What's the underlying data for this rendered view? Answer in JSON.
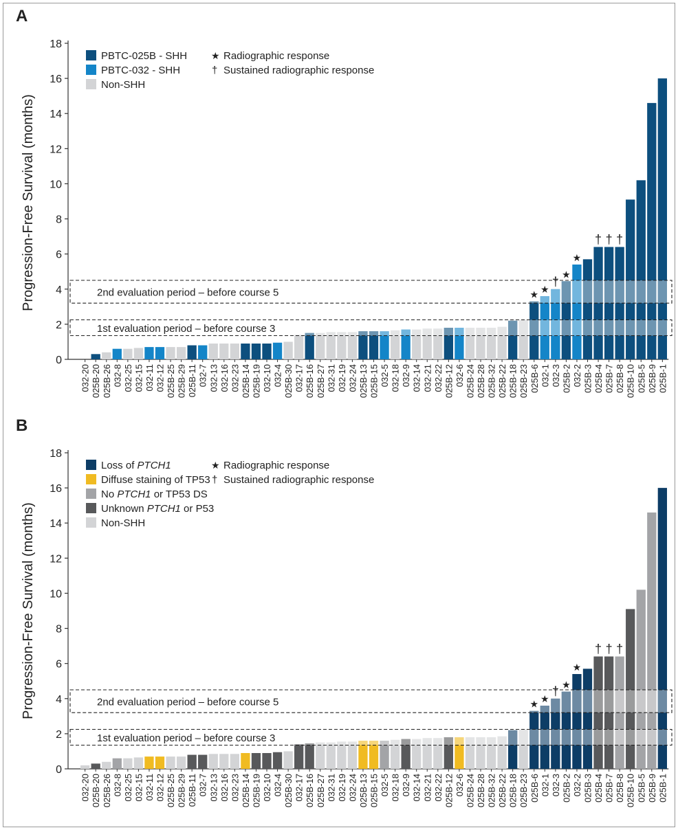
{
  "shared_categories": [
    "032-20",
    "025B-20",
    "025B-26",
    "032-8",
    "032-25",
    "032-15",
    "032-11",
    "032-12",
    "025B-25",
    "025B-29",
    "025B-11",
    "032-7",
    "032-13",
    "032-16",
    "032-23",
    "025B-14",
    "025B-19",
    "032-10",
    "032-4",
    "025B-30",
    "032-17",
    "025B-16",
    "025B-27",
    "032-31",
    "032-19",
    "032-24",
    "025B-13",
    "025B-15",
    "032-5",
    "032-18",
    "032-9",
    "032-14",
    "032-21",
    "032-22",
    "025B-12",
    "032-6",
    "025B-24",
    "025B-28",
    "025B-32",
    "025B-22",
    "025B-18",
    "025B-23",
    "025B-6",
    "032-1",
    "032-3",
    "025B-2",
    "032-2",
    "025B-3",
    "025B-4",
    "025B-7",
    "025B-8",
    "025B-10",
    "025B-5",
    "025B-9",
    "025B-1"
  ],
  "colors": {
    "pbtc025b": "#0d4f7e",
    "pbtc032": "#1485c8",
    "nonshh": "#d3d4d6",
    "loss_ptch1": "#0d3d66",
    "tp53": "#f0bb22",
    "no_ptch1": "#a3a4a7",
    "unknown": "#58595b"
  },
  "chart_data": [
    {
      "panel": "A",
      "type": "bar",
      "ylabel": "Progression-Free Survival (months)",
      "xlabel": "",
      "ylim": [
        0,
        18
      ],
      "yticks": [
        0,
        2,
        4,
        6,
        8,
        10,
        12,
        14,
        16,
        18
      ],
      "values": [
        0,
        0.3,
        0.4,
        0.6,
        0.6,
        0.65,
        0.7,
        0.7,
        0.7,
        0.7,
        0.8,
        0.8,
        0.9,
        0.9,
        0.9,
        0.9,
        0.9,
        0.9,
        0.95,
        1.0,
        1.4,
        1.5,
        1.5,
        1.55,
        1.55,
        1.55,
        1.6,
        1.6,
        1.6,
        1.65,
        1.7,
        1.7,
        1.75,
        1.75,
        1.8,
        1.8,
        1.8,
        1.8,
        1.8,
        1.85,
        2.2,
        2.25,
        3.3,
        3.6,
        4.0,
        4.45,
        5.4,
        5.7,
        6.4,
        6.4,
        6.4,
        9.1,
        10.2,
        14.6,
        16.0
      ],
      "groups": [
        "032",
        "025B",
        "nonshh",
        "032",
        "nonshh",
        "nonshh",
        "032",
        "032",
        "nonshh",
        "nonshh",
        "025B",
        "032",
        "nonshh",
        "nonshh",
        "nonshh",
        "025B",
        "025B",
        "025B",
        "032",
        "nonshh",
        "nonshh",
        "025B",
        "nonshh",
        "nonshh",
        "nonshh",
        "nonshh",
        "025B",
        "025B",
        "032",
        "nonshh",
        "032",
        "nonshh",
        "nonshh",
        "nonshh",
        "025B",
        "032",
        "nonshh",
        "nonshh",
        "nonshh",
        "nonshh",
        "025B",
        "nonshh",
        "025B",
        "032",
        "032",
        "025B",
        "032",
        "025B",
        "025B",
        "025B",
        "025B",
        "025B",
        "025B",
        "025B",
        "025B"
      ],
      "legend": [
        {
          "label": "PBTC-025B - SHH",
          "group": "025B"
        },
        {
          "label": "PBTC-032 - SHH",
          "group": "032"
        },
        {
          "label": "Non-SHH",
          "group": "nonshh"
        }
      ]
    },
    {
      "panel": "B",
      "type": "bar",
      "ylabel": "Progression-Free Survival (months)",
      "xlabel": "",
      "ylim": [
        0,
        18
      ],
      "yticks": [
        0,
        2,
        4,
        6,
        8,
        10,
        12,
        14,
        16,
        18
      ],
      "values": [
        0.2,
        0.3,
        0.4,
        0.6,
        0.6,
        0.65,
        0.7,
        0.7,
        0.7,
        0.7,
        0.8,
        0.8,
        0.85,
        0.85,
        0.85,
        0.9,
        0.9,
        0.9,
        0.95,
        1.0,
        1.4,
        1.45,
        1.5,
        1.5,
        1.55,
        1.55,
        1.6,
        1.6,
        1.6,
        1.65,
        1.7,
        1.7,
        1.75,
        1.75,
        1.8,
        1.8,
        1.8,
        1.8,
        1.8,
        1.85,
        2.2,
        2.25,
        3.3,
        3.6,
        4.0,
        4.4,
        5.4,
        5.7,
        6.4,
        6.4,
        6.4,
        9.1,
        10.2,
        14.6,
        16.0
      ],
      "groups": [
        "nonshh",
        "unknown",
        "nonshh",
        "no_ptch1",
        "nonshh",
        "nonshh",
        "tp53",
        "tp53",
        "nonshh",
        "nonshh",
        "unknown",
        "unknown",
        "nonshh",
        "nonshh",
        "nonshh",
        "tp53",
        "unknown",
        "unknown",
        "unknown",
        "nonshh",
        "unknown",
        "unknown",
        "nonshh",
        "nonshh",
        "nonshh",
        "nonshh",
        "tp53",
        "tp53",
        "no_ptch1",
        "nonshh",
        "unknown",
        "nonshh",
        "nonshh",
        "nonshh",
        "unknown",
        "tp53",
        "nonshh",
        "nonshh",
        "nonshh",
        "nonshh",
        "loss_ptch1",
        "nonshh",
        "loss_ptch1",
        "loss_ptch1",
        "loss_ptch1",
        "loss_ptch1",
        "loss_ptch1",
        "loss_ptch1",
        "unknown",
        "unknown",
        "no_ptch1",
        "unknown",
        "no_ptch1",
        "no_ptch1",
        "loss_ptch1"
      ],
      "legend": [
        {
          "label": "Loss of PTCH1",
          "pre": "Loss of ",
          "ital": "PTCH1",
          "post": "",
          "group": "loss_ptch1"
        },
        {
          "label": "Diffuse staining of TP53",
          "pre": "Diffuse staining of TP53",
          "ital": "",
          "post": "",
          "group": "tp53"
        },
        {
          "label": "No PTCH1 or TP53 DS",
          "pre": "No ",
          "ital": "PTCH1",
          "post": " or TP53 DS",
          "group": "no_ptch1"
        },
        {
          "label": "Unknown PTCH1 or P53",
          "pre": "Unknown ",
          "ital": "PTCH1",
          "post": " or P53",
          "group": "unknown"
        },
        {
          "label": "Non-SHH",
          "pre": "Non-SHH",
          "ital": "",
          "post": "",
          "group": "nonshh"
        }
      ]
    }
  ],
  "evaluation_periods": [
    {
      "label": "2nd evaluation period – before course 5",
      "range": [
        3.2,
        4.5
      ]
    },
    {
      "label": "1st evaluation period – before course 3",
      "range": [
        1.35,
        2.25
      ]
    }
  ],
  "response_legend": {
    "star_symbol": "★",
    "star_label": "Radiographic response",
    "dagger_symbol": "†",
    "dagger_label": "Sustained radiographic response"
  },
  "markers": [
    {
      "category": "025B-6",
      "symbol": "★",
      "tone": "gray"
    },
    {
      "category": "032-1",
      "symbol": "★",
      "tone": "gray"
    },
    {
      "category": "032-3",
      "symbol": "†",
      "tone": "gray"
    },
    {
      "category": "025B-2",
      "symbol": "★",
      "tone": "black"
    },
    {
      "category": "032-2",
      "symbol": "★",
      "tone": "black"
    },
    {
      "category": "025B-4",
      "symbol": "†",
      "tone": "black"
    },
    {
      "category": "025B-7",
      "symbol": "†",
      "tone": "black"
    },
    {
      "category": "025B-8",
      "symbol": "†",
      "tone": "black"
    }
  ]
}
